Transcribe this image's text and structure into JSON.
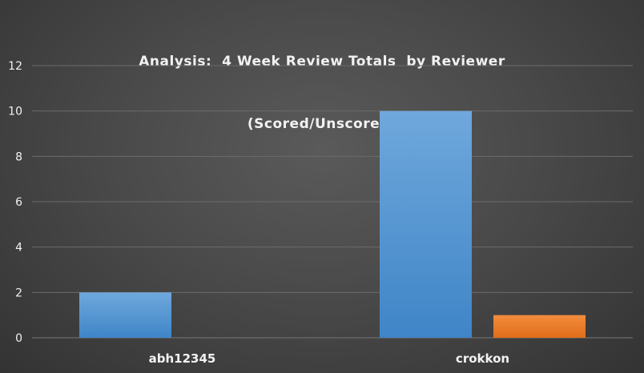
{
  "chart_data": {
    "type": "bar",
    "title": "Analysis:  4 Week Review Totals  by Reviewer",
    "subtitle": "(Scored/Unscored)",
    "xlabel": "",
    "ylabel": "",
    "categories": [
      "abh12345",
      "crokkon"
    ],
    "series": [
      {
        "values": [
          2,
          10
        ],
        "color": "#5b9bd5"
      },
      {
        "values": [
          0,
          1
        ],
        "color": "#ed7d31"
      }
    ],
    "ylim": [
      0,
      12
    ],
    "yticks": [
      "0",
      "2",
      "4",
      "6",
      "8",
      "10",
      "12"
    ],
    "grid": true,
    "legend": "none"
  },
  "colors": {
    "background": "#474747",
    "gridline": "#6b6b6b",
    "text": "#f2f2f2",
    "blue": "#5b9bd5",
    "orange": "#ed7d31"
  }
}
